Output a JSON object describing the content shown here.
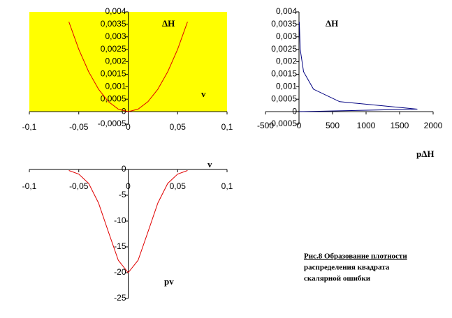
{
  "chart_data": [
    {
      "type": "line",
      "background": "#ffff00",
      "color": "#e00000",
      "y_label": "ΔH",
      "x_label": "v",
      "x": [
        -0.06,
        -0.05,
        -0.04,
        -0.03,
        -0.02,
        -0.01,
        0,
        0.01,
        0.02,
        0.03,
        0.04,
        0.05,
        0.06
      ],
      "values": [
        0.0036,
        0.0025,
        0.0016,
        0.0009,
        0.0004,
        0.0001,
        0,
        0.0001,
        0.0004,
        0.0009,
        0.0016,
        0.0025,
        0.0036
      ],
      "xlim": [
        -0.1,
        0.1
      ],
      "xticks": [
        {
          "value": -0.1,
          "label": "-0,1"
        },
        {
          "value": -0.05,
          "label": "-0,05"
        },
        0,
        {
          "value": 0.05,
          "label": "0,05"
        },
        {
          "value": 0.1,
          "label": "0,1"
        }
      ],
      "ylim": [
        -0.0005,
        0.004
      ],
      "yticks": [
        {
          "value": -0.0005,
          "label": "-0,0005"
        },
        0,
        {
          "value": 0.0005,
          "label": "0,0005"
        },
        {
          "value": 0.001,
          "label": "0,001"
        },
        {
          "value": 0.0015,
          "label": "0,0015"
        },
        {
          "value": 0.002,
          "label": "0,002"
        },
        {
          "value": 0.0025,
          "label": "0,0025"
        },
        {
          "value": 0.003,
          "label": "0,003"
        },
        {
          "value": 0.0035,
          "label": "0,0035"
        },
        {
          "value": 0.004,
          "label": "0,004"
        }
      ]
    },
    {
      "type": "line",
      "color": "#000080",
      "y_label": "ΔH",
      "x_label": "pΔH",
      "x": [
        0,
        1765,
        606,
        216,
        68,
        18,
        4
      ],
      "values": [
        0,
        0.0001,
        0.0004,
        0.0009,
        0.0016,
        0.0025,
        0.0036
      ],
      "xlim": [
        -500,
        2000
      ],
      "xticks": [
        -500,
        0,
        500,
        1000,
        1500,
        2000
      ],
      "ylim": [
        -0.0005,
        0.004
      ],
      "yticks": [
        {
          "value": -0.0005,
          "label": "-0,0005"
        },
        0,
        {
          "value": 0.0005,
          "label": "0,0005"
        },
        {
          "value": 0.001,
          "label": "0,001"
        },
        {
          "value": 0.0015,
          "label": "0,0015"
        },
        {
          "value": 0.002,
          "label": "0,002"
        },
        {
          "value": 0.0025,
          "label": "0,0025"
        },
        {
          "value": 0.003,
          "label": "0,003"
        },
        {
          "value": 0.0035,
          "label": "0,0035"
        },
        {
          "value": 0.004,
          "label": "0,004"
        }
      ]
    },
    {
      "type": "line",
      "color": "#e00000",
      "y_label": "pv",
      "x_label": "v",
      "x": [
        -0.06,
        -0.05,
        -0.04,
        -0.03,
        -0.02,
        -0.01,
        0,
        0.01,
        0.02,
        0.03,
        0.04,
        0.05,
        0.06
      ],
      "values": [
        -0.2,
        -0.9,
        -2.7,
        -6.5,
        -12.1,
        -17.6,
        -20,
        -17.6,
        -12.1,
        -6.5,
        -2.7,
        -0.9,
        -0.2
      ],
      "xlim": [
        -0.1,
        0.1
      ],
      "xticks": [
        {
          "value": -0.1,
          "label": "-0,1"
        },
        {
          "value": -0.05,
          "label": "-0,05"
        },
        0,
        {
          "value": 0.05,
          "label": "0,05"
        },
        {
          "value": 0.1,
          "label": "0,1"
        }
      ],
      "ylim": [
        -25,
        0
      ],
      "yticks": [
        -25,
        -20,
        -15,
        -10,
        -5,
        0
      ]
    }
  ],
  "caption": [
    "Рис.8 Образование плотности",
    "распределения квадрата",
    "скалярной ошибки"
  ]
}
